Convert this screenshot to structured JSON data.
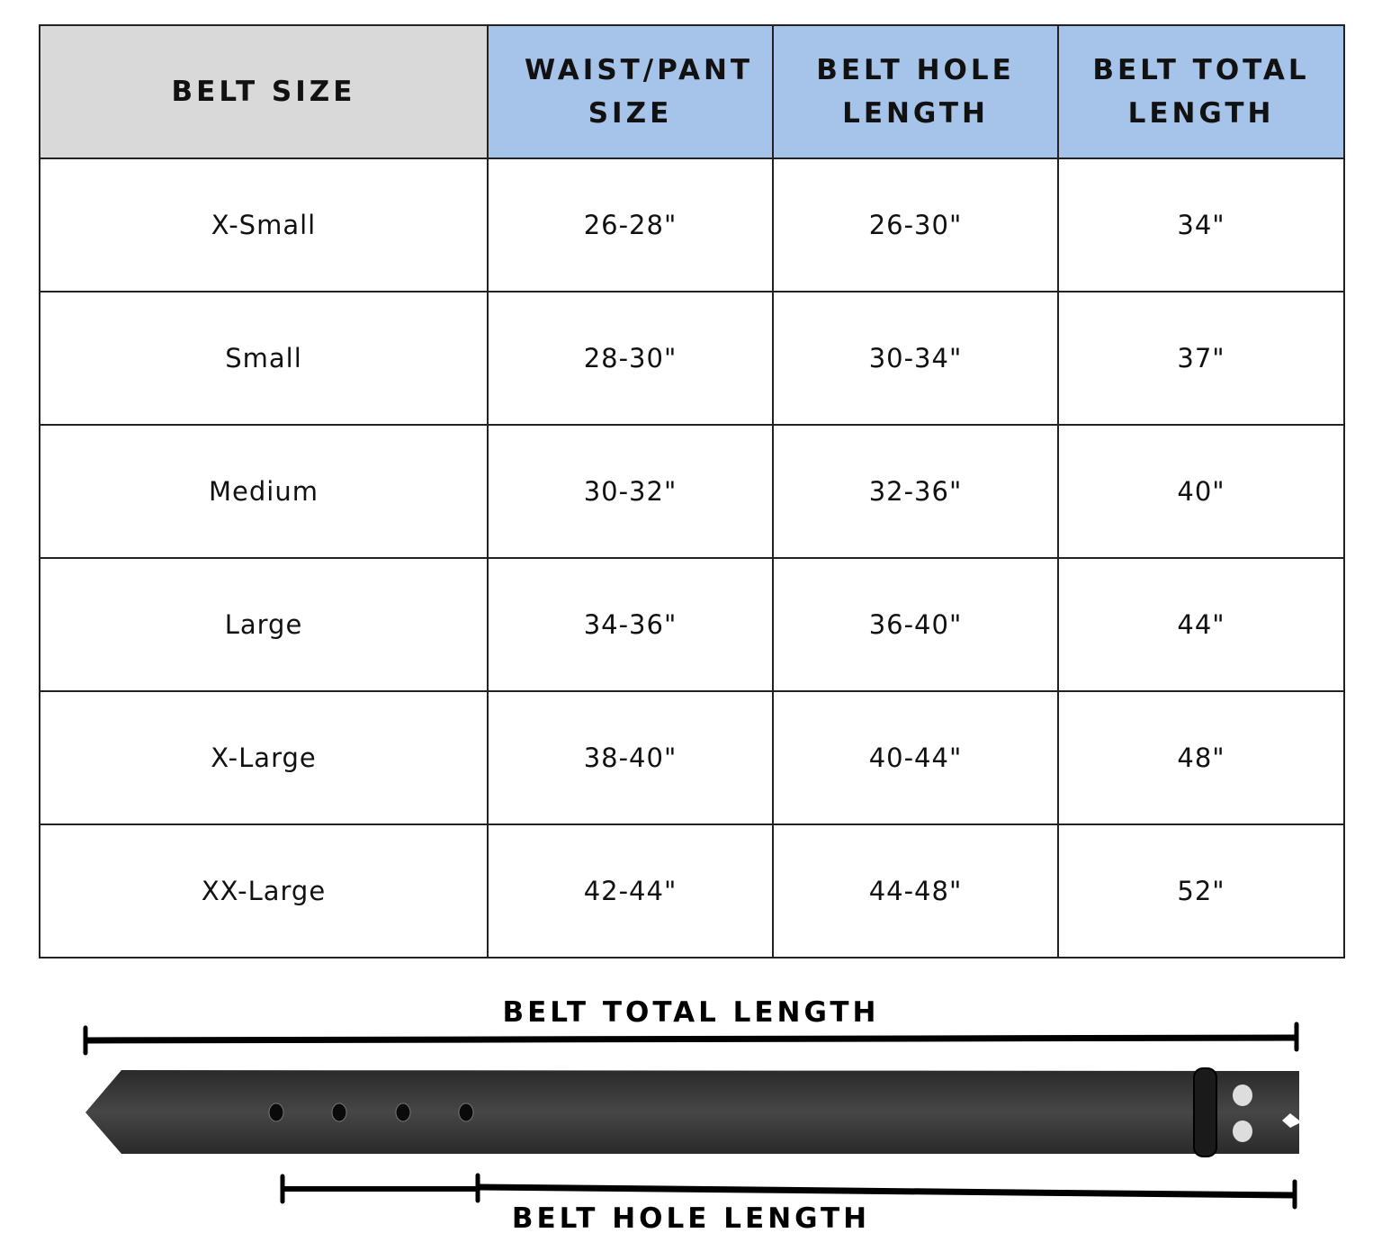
{
  "table": {
    "headers": [
      "BELT SIZE",
      "WAIST/PANT SIZE",
      "BELT HOLE LENGTH",
      "BELT TOTAL LENGTH"
    ],
    "header_colors": {
      "first": "#d9d9d9",
      "others": "#a6c3e9"
    },
    "rows": [
      [
        "X-Small",
        "26-28\"",
        "26-30\"",
        "34\""
      ],
      [
        "Small",
        "28-30\"",
        "30-34\"",
        "37\""
      ],
      [
        "Medium",
        "30-32\"",
        "32-36\"",
        "40\""
      ],
      [
        "Large",
        "34-36\"",
        "36-40\"",
        "44\""
      ],
      [
        "X-Large",
        "38-40\"",
        "40-44\"",
        "48\""
      ],
      [
        "XX-Large",
        "42-44\"",
        "44-48\"",
        "52\""
      ]
    ]
  },
  "diagram": {
    "total_length_label": "BELT TOTAL LENGTH",
    "hole_length_label": "BELT HOLE LENGTH"
  }
}
